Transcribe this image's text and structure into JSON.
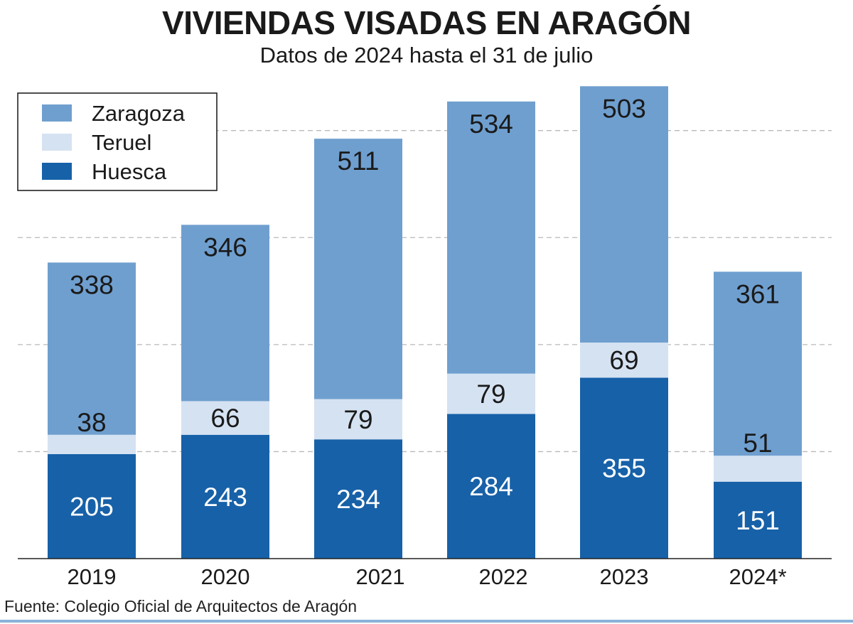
{
  "chart_data": {
    "type": "bar",
    "stacked": true,
    "title": "VIVIENDAS VISADAS EN ARAGÓN",
    "subtitle": "Datos de 2024 hasta el 31 de julio",
    "categories": [
      "2019",
      "2020",
      "2021",
      "2022",
      "2023",
      "2024*"
    ],
    "series": [
      {
        "name": "Huesca",
        "values": [
          205,
          243,
          234,
          284,
          355,
          151
        ],
        "color": "#1761a8"
      },
      {
        "name": "Teruel",
        "values": [
          38,
          66,
          79,
          79,
          69,
          51
        ],
        "color": "#d5e2f2"
      },
      {
        "name": "Zaragoza",
        "values": [
          338,
          346,
          511,
          534,
          503,
          361
        ],
        "color": "#6f9fcf"
      }
    ],
    "legend_order": [
      "Zaragoza",
      "Teruel",
      "Huesca"
    ],
    "legend_position": "top-left",
    "grid": "dashed horizontal",
    "ylim": [
      0,
      940
    ]
  },
  "source": "Fuente: Colegio Oficial de Arquitectos de Aragón"
}
